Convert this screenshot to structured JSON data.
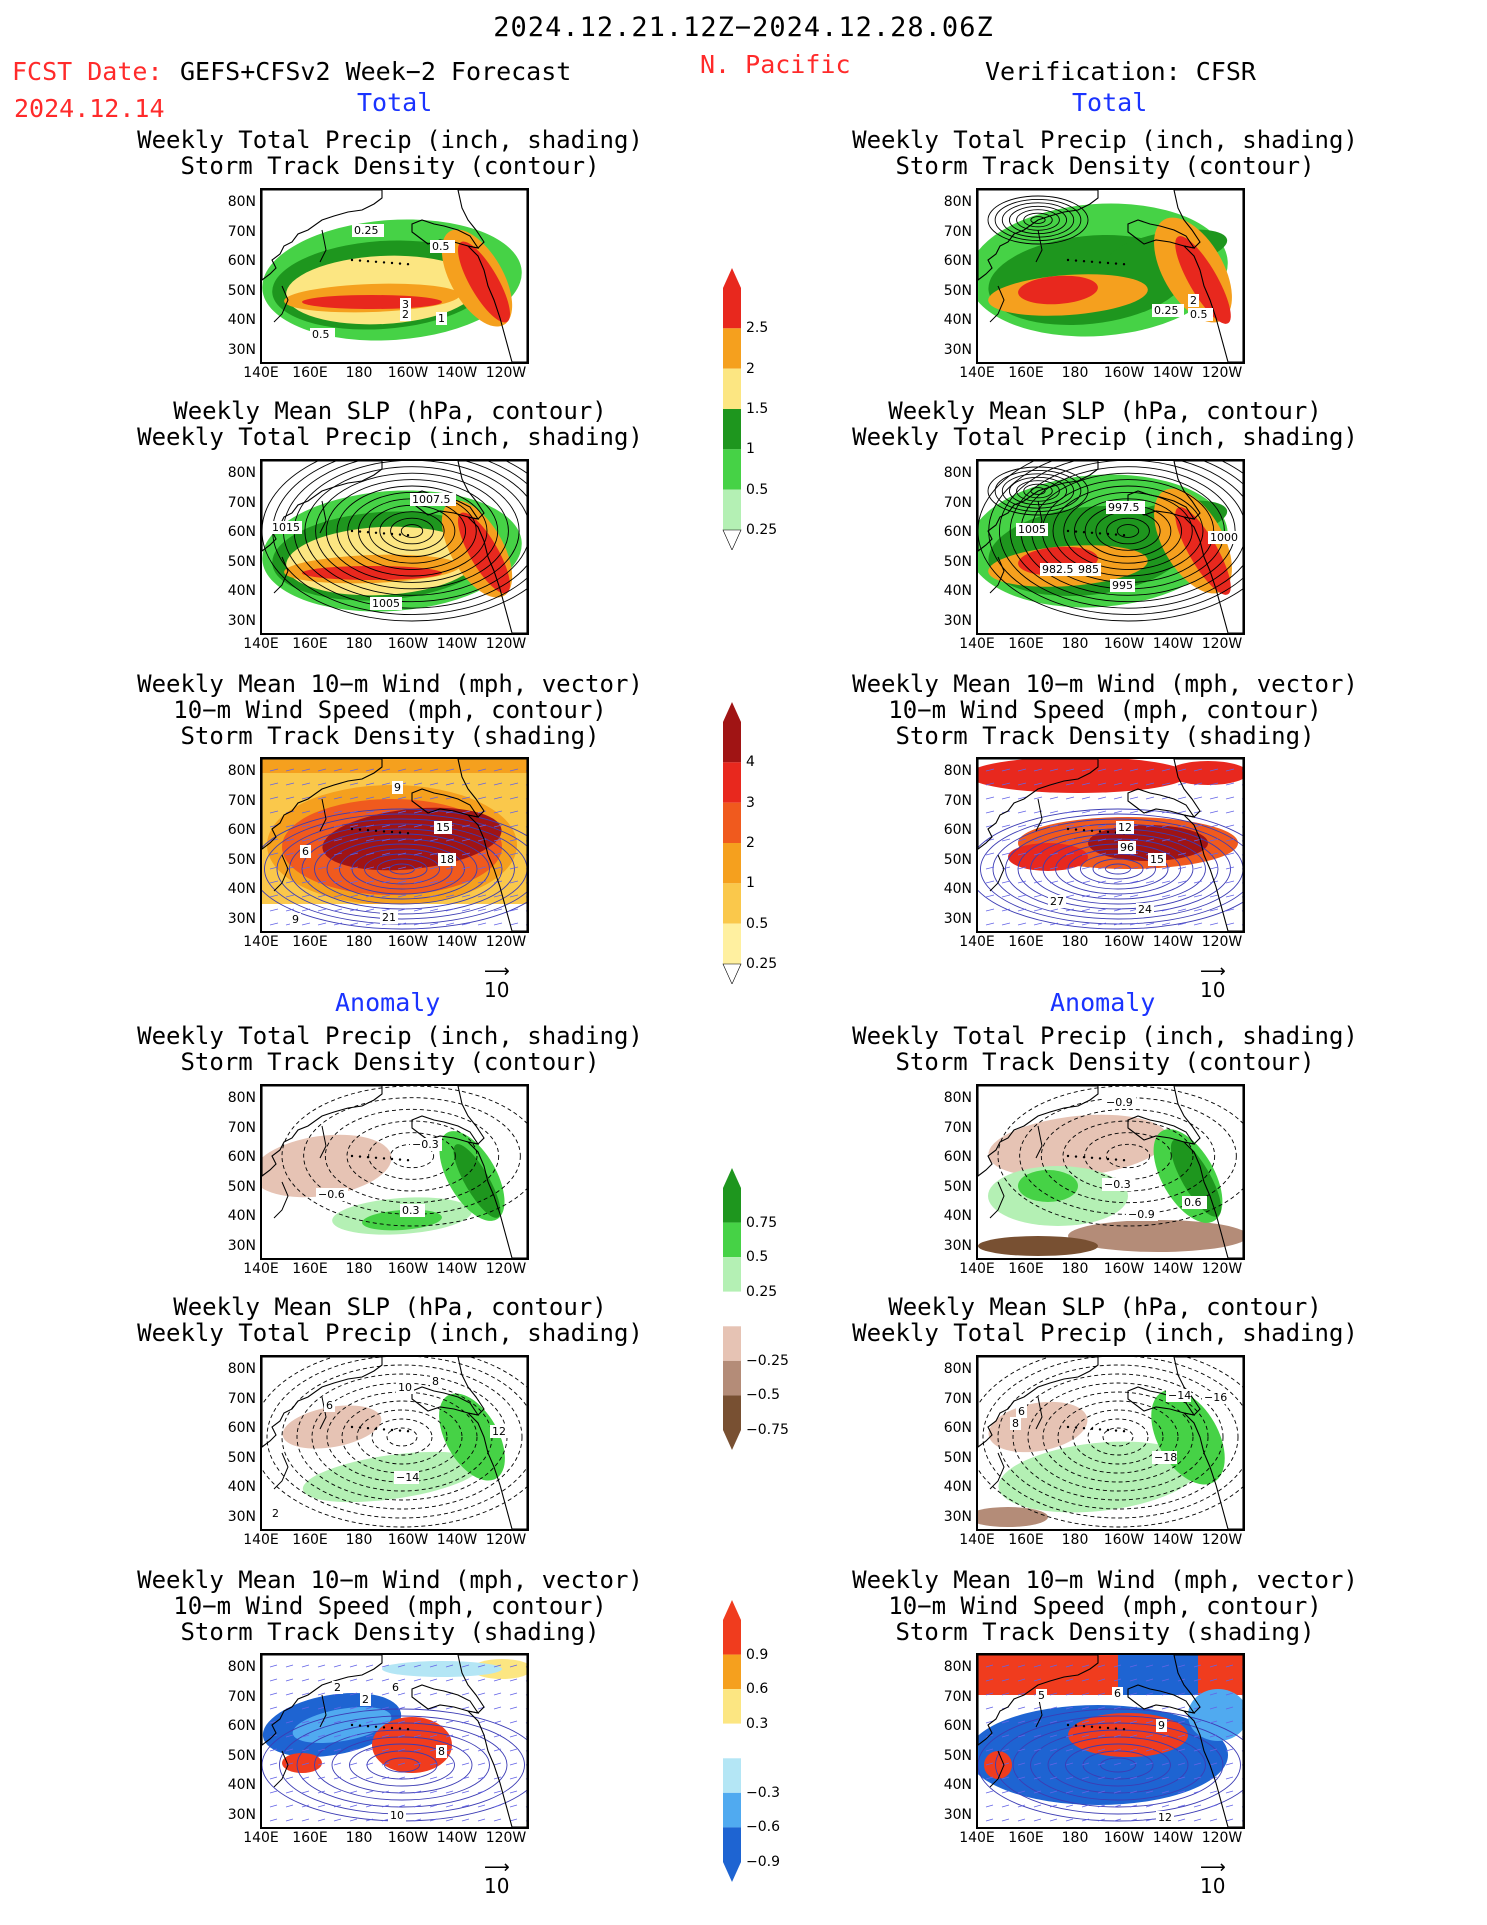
{
  "header": {
    "period": "2024.12.21.12Z−2024.12.28.06Z",
    "fcst_label": "FCST Date:",
    "fcst_model": "GEFS+CFSv2 Week−2 Forecast",
    "fcst_date": "2024.12.14",
    "region": "N. Pacific",
    "verification": "Verification: CFSR"
  },
  "sections": {
    "total": "Total",
    "anomaly": "Anomaly"
  },
  "titles": {
    "precip_track": [
      "Weekly Total Precip (inch, shading)",
      "Storm Track Density (contour)"
    ],
    "slp_precip": [
      "Weekly Mean SLP (hPa, contour)",
      "Weekly Total Precip (inch, shading)"
    ],
    "wind_track": [
      "Weekly Mean 10−m Wind (mph, vector)",
      "10−m Wind Speed (mph, contour)",
      "Storm Track Density (shading)"
    ]
  },
  "axes": {
    "lat_labels": [
      "80N",
      "70N",
      "60N",
      "50N",
      "40N",
      "30N"
    ],
    "lon_labels": [
      "140E",
      "160E",
      "180",
      "160W",
      "140W",
      "120W"
    ]
  },
  "vector_reference": "10",
  "colorbars": {
    "total_precip": {
      "labels": [
        "2.5",
        "2",
        "1.5",
        "1",
        "0.5",
        "0.25"
      ],
      "colors": [
        "#e8281e",
        "#f5a01e",
        "#fce682",
        "#1e961e",
        "#46d246",
        "#b4f0b4"
      ]
    },
    "total_track": {
      "labels": [
        "4",
        "3",
        "2",
        "1",
        "0.5",
        "0.25"
      ],
      "colors": [
        "#a01414",
        "#e8281e",
        "#f05a1e",
        "#f5a01e",
        "#fac84b",
        "#fff0a0"
      ]
    },
    "anom_precip": {
      "labels": [
        "0.75",
        "0.5",
        "0.25",
        "−0.25",
        "−0.5",
        "−0.75"
      ],
      "colors": [
        "#1e961e",
        "#46d246",
        "#b4f0b4",
        "#ffffff",
        "#e6c3b4",
        "#b48c78",
        "#785032"
      ]
    },
    "anom_track": {
      "labels": [
        "0.9",
        "0.6",
        "0.3",
        "−0.3",
        "−0.6",
        "−0.9"
      ],
      "colors": [
        "#f03c1e",
        "#f5a01e",
        "#fce682",
        "#ffffff",
        "#b4e6f5",
        "#50aaf0",
        "#1e64d2"
      ]
    }
  },
  "map_labels": {
    "fc_precip_track": [
      "0.25",
      "0.5",
      "3",
      "2",
      "1",
      "0.5"
    ],
    "ver_precip_track": [
      "0.25",
      "2",
      "0.5"
    ],
    "fc_slp": [
      "1007.5",
      "1015",
      "1005"
    ],
    "ver_slp": [
      "997.5",
      "1005",
      "1000",
      "982.5",
      "985",
      "995"
    ],
    "fc_wind": [
      "9",
      "15",
      "18",
      "21",
      "6",
      "9"
    ],
    "ver_wind": [
      "12",
      "96",
      "15",
      "27",
      "24"
    ],
    "fc_anom_precip": [
      "−0.3",
      "−0.6",
      "0.3"
    ],
    "ver_anom_precip": [
      "−0.9",
      "−0.3",
      "0.6",
      "−0.9"
    ],
    "fc_anom_slp": [
      "10",
      "8",
      "6",
      "12",
      "−14",
      "2"
    ],
    "ver_anom_slp": [
      "−14",
      "−16",
      "6",
      "8",
      "−18"
    ],
    "fc_anom_wind": [
      "2",
      "6",
      "8",
      "2",
      "10"
    ],
    "ver_anom_wind": [
      "5",
      "6",
      "9",
      "12"
    ]
  }
}
